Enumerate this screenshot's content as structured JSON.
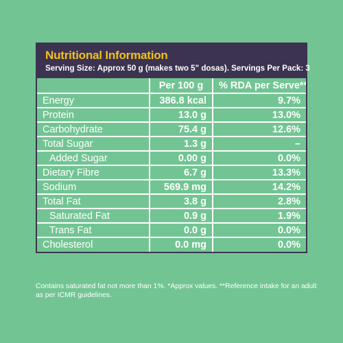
{
  "panel": {
    "title": "Nutritional Information",
    "serving": "Serving Size: Approx 50 g (makes two 5\" dosas). Servings Per Pack: 3"
  },
  "table": {
    "headers": [
      "",
      "Per 100 g",
      "% RDA per Serve**"
    ],
    "rows": [
      {
        "name": "Energy",
        "value": "386.8 kcal",
        "rda": "9.7%"
      },
      {
        "name": "Protein",
        "value": "13.0 g",
        "rda": "13.0%"
      },
      {
        "name": "Carbohydrate",
        "value": "75.4 g",
        "rda": "12.6%"
      },
      {
        "name": "Total Sugar",
        "value": "1.3 g",
        "rda": "–"
      },
      {
        "name": "Added Sugar",
        "value": "0.00 g",
        "rda": "0.0%"
      },
      {
        "name": "Dietary Fibre",
        "value": "6.7 g",
        "rda": "13.3%"
      },
      {
        "name": "Sodium",
        "value": "569.9 mg",
        "rda": "14.2%"
      },
      {
        "name": "Total Fat",
        "value": "3.8 g",
        "rda": "2.8%"
      },
      {
        "name": "Saturated Fat",
        "value": "0.9 g",
        "rda": "1.9%"
      },
      {
        "name": "Trans Fat",
        "value": "0.0 g",
        "rda": "0.0%"
      },
      {
        "name": "Cholesterol",
        "value": "0.0 mg",
        "rda": "0.0%"
      }
    ]
  },
  "footnote": "Contains saturated fat not more than 1%. *Approx values. **Reference intake for an adult as per ICMR guidelines.",
  "colors": {
    "background": "#72c593",
    "header_bg": "#3b3350",
    "title": "#f3c21b",
    "text": "#ffffff"
  }
}
